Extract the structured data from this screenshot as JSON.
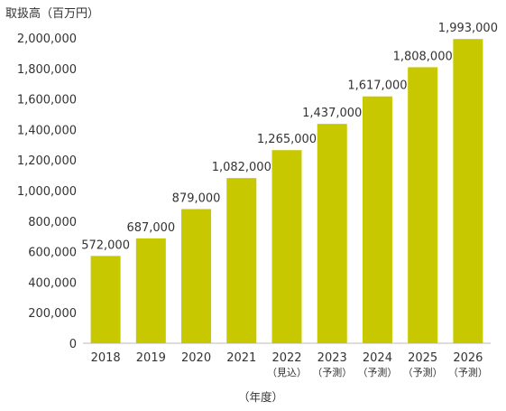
{
  "chart_data": {
    "type": "bar",
    "ylabel": "取扱高（百万円）",
    "xlabel": "（年度）",
    "ylim": [
      0,
      2000000
    ],
    "yticks": [
      0,
      200000,
      400000,
      600000,
      800000,
      1000000,
      1200000,
      1400000,
      1600000,
      1800000,
      2000000
    ],
    "ytick_labels": [
      "0",
      "200,000",
      "400,000",
      "600,000",
      "800,000",
      "1,000,000",
      "1,200,000",
      "1,400,000",
      "1,600,000",
      "1,800,000",
      "2,000,000"
    ],
    "grid": false,
    "legend": "none",
    "bar_color": "#c8c800",
    "categories": [
      "2018",
      "2019",
      "2020",
      "2021",
      "2022",
      "2023",
      "2024",
      "2025",
      "2026"
    ],
    "category_notes": [
      "",
      "",
      "",
      "",
      "（見込）",
      "（予測）",
      "（予測）",
      "（予測）",
      "（予測）"
    ],
    "values": [
      572000,
      687000,
      879000,
      1082000,
      1265000,
      1437000,
      1617000,
      1808000,
      1993000
    ],
    "value_labels": [
      "572,000",
      "687,000",
      "879,000",
      "1,082,000",
      "1,265,000",
      "1,437,000",
      "1,617,000",
      "1,808,000",
      "1,993,000"
    ]
  }
}
